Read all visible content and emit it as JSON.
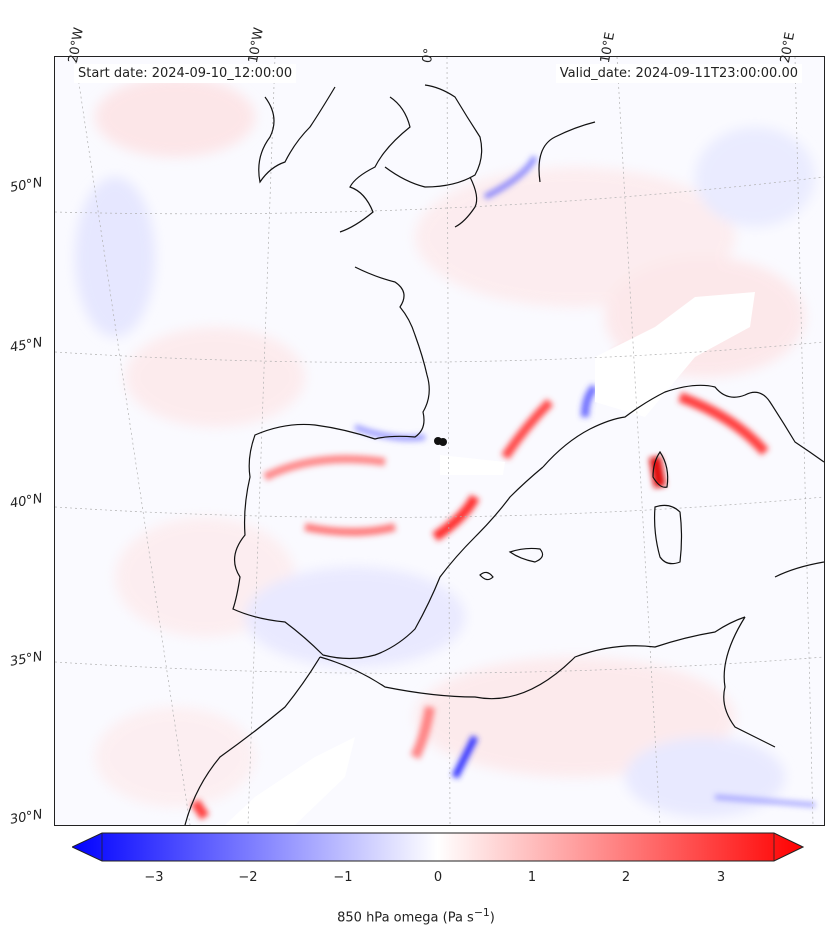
{
  "header": {
    "start_date": "Start date: 2024-09-10_12:00:00",
    "valid_date": "Valid_date: 2024-09-11T23:00:00.00"
  },
  "lon_labels": [
    "20°W",
    "10°W",
    "0°",
    "10°E",
    "20°E"
  ],
  "lat_labels": [
    "50°N",
    "45°N",
    "40°N",
    "35°N",
    "30°N"
  ],
  "colorbar": {
    "ticks": [
      "−3",
      "−2",
      "−1",
      "0",
      "1",
      "2",
      "3"
    ],
    "label": "850 hPa omega (Pa s",
    "label_exp": "−1",
    "label_end": ")",
    "min_color": "#0000ff",
    "mid_color": "#ffffff",
    "max_color": "#ff0000"
  }
}
